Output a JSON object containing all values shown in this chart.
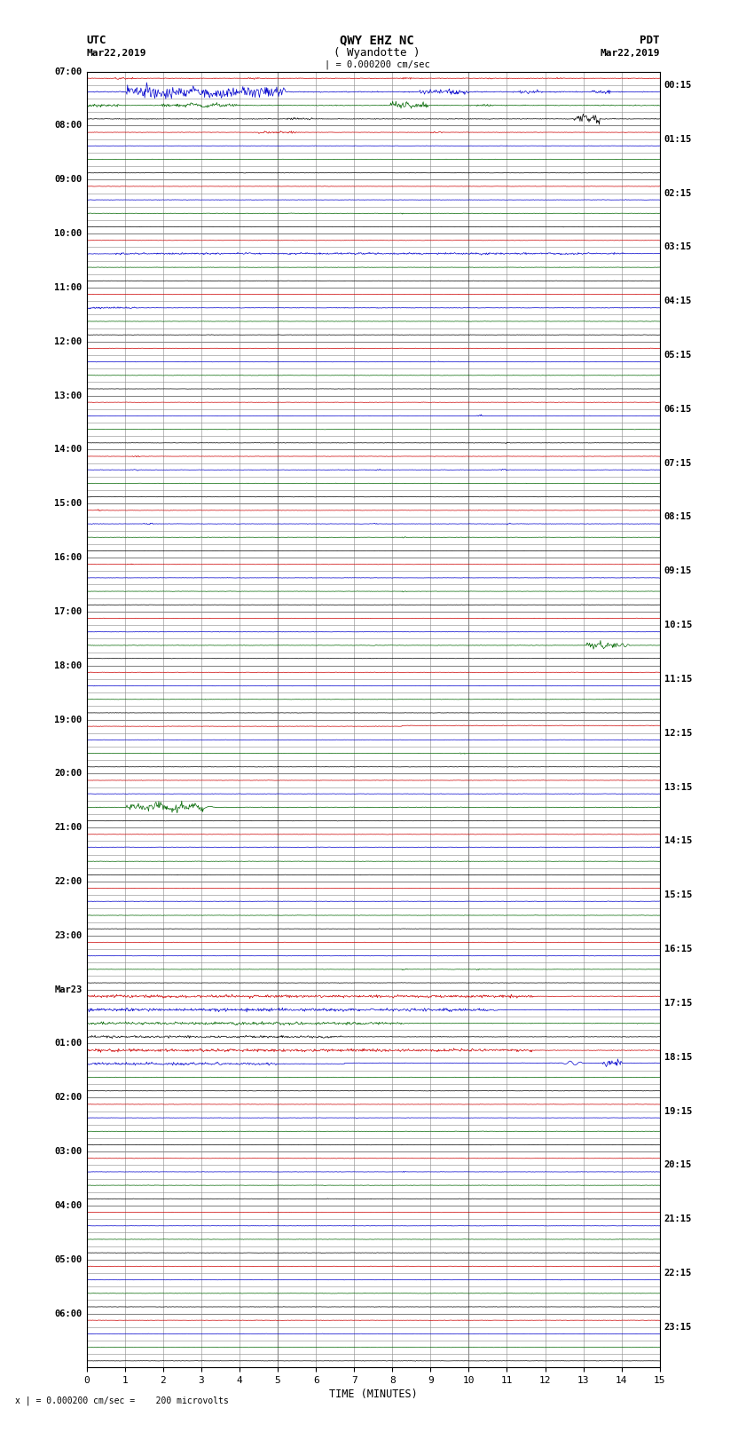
{
  "title_line1": "QWY EHZ NC",
  "title_line2": "( Wyandotte )",
  "scale_label": "| = 0.000200 cm/sec",
  "utc_label": "UTC",
  "utc_date": "Mar22,2019",
  "pdt_label": "PDT",
  "pdt_date": "Mar22,2019",
  "xlabel": "TIME (MINUTES)",
  "footer": "x | = 0.000200 cm/sec =    200 microvolts",
  "bg_color": "#ffffff",
  "grid_color": "#888888",
  "trace_colors": [
    "#cc0000",
    "#0000cc",
    "#006600",
    "#000000"
  ],
  "fig_width": 8.5,
  "fig_height": 16.13,
  "n_rows": 96,
  "x_min": 0,
  "x_max": 15,
  "left_label_rows": [
    0,
    4,
    8,
    12,
    16,
    20,
    24,
    28,
    32,
    36,
    40,
    44,
    48,
    52,
    56,
    60,
    64,
    68,
    72,
    76,
    80,
    84,
    88,
    92,
    96
  ],
  "left_labels_text": [
    "07:00",
    "08:00",
    "09:00",
    "10:00",
    "11:00",
    "12:00",
    "13:00",
    "14:00",
    "15:00",
    "16:00",
    "17:00",
    "18:00",
    "19:00",
    "20:00",
    "21:00",
    "22:00",
    "23:00",
    "Mar23",
    "01:00",
    "02:00",
    "03:00",
    "04:00",
    "05:00",
    "06:00",
    ""
  ],
  "right_label_rows": [
    1,
    5,
    9,
    13,
    17,
    21,
    25,
    29,
    33,
    37,
    41,
    45,
    49,
    53,
    57,
    61,
    65,
    69,
    73,
    77,
    81,
    85,
    89,
    93
  ],
  "right_labels_text": [
    "00:15",
    "01:15",
    "02:15",
    "03:15",
    "04:15",
    "05:15",
    "06:15",
    "07:15",
    "08:15",
    "09:15",
    "10:15",
    "11:15",
    "12:15",
    "13:15",
    "14:15",
    "15:15",
    "16:15",
    "17:15",
    "18:15",
    "19:15",
    "20:15",
    "21:15",
    "22:15",
    "23:15"
  ]
}
